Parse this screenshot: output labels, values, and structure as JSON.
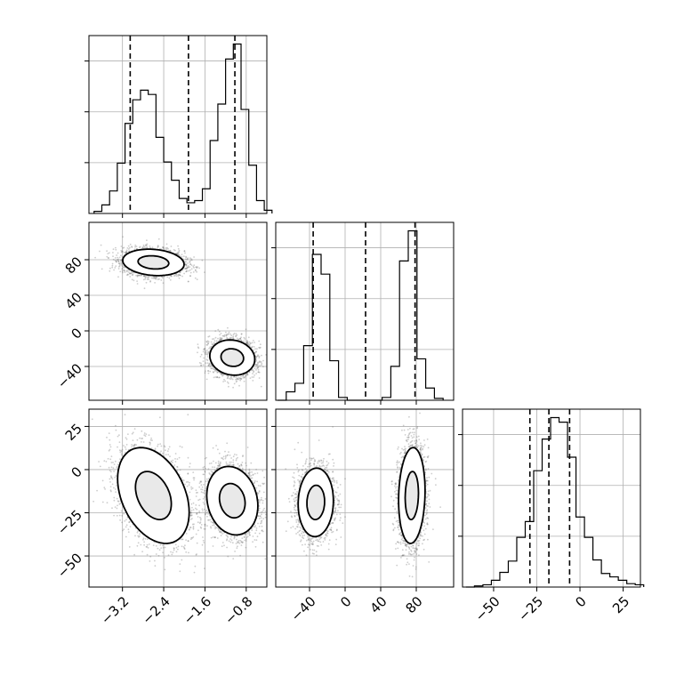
{
  "chart_data": {
    "type": "corner",
    "colors": {
      "hist": "#000000",
      "points": "#6f6f6f",
      "contour": "#000000",
      "grid": "#b0b0b0"
    },
    "params": [
      {
        "ticks": [
          -3.2,
          -2.4,
          -1.6,
          -0.8
        ],
        "tick_labels": [
          "−3.2",
          "−2.4",
          "−1.6",
          "−0.8"
        ],
        "range": [
          -3.85,
          -0.4
        ]
      },
      {
        "ticks": [
          -40,
          0,
          40,
          80
        ],
        "tick_labels": [
          "−40",
          "0",
          "40",
          "80"
        ],
        "range": [
          -78,
          122
        ]
      },
      {
        "ticks": [
          -50,
          -25,
          0,
          25
        ],
        "tick_labels": [
          "−50",
          "−25",
          "0",
          "25"
        ],
        "range": [
          -68,
          35
        ]
      }
    ],
    "histograms": [
      {
        "bin_start": -3.75,
        "bin_width": 0.15,
        "counts": [
          2,
          8,
          21,
          47,
          84,
          106,
          115,
          111,
          71,
          48,
          31,
          14,
          10,
          12,
          23,
          68,
          102,
          144,
          158,
          97,
          45,
          12,
          3
        ],
        "quantiles": [
          -3.05,
          -1.92,
          -1.02
        ]
      },
      {
        "bin_start": -76,
        "bin_width": 9.8,
        "counts": [
          0,
          9,
          18,
          58,
          155,
          134,
          42,
          3,
          0,
          0,
          0,
          0,
          3,
          36,
          148,
          180,
          44,
          13,
          2
        ],
        "quantiles": [
          -35.9,
          23,
          78.6
        ]
      },
      {
        "bin_start": -66,
        "bin_width": 4.9,
        "counts": [
          0,
          1,
          2,
          6,
          13,
          23,
          44,
          58,
          103,
          131,
          150,
          146,
          115,
          62,
          44,
          24,
          12,
          9,
          6,
          3,
          2
        ],
        "quantiles": [
          -29,
          -18,
          -6
        ]
      }
    ],
    "scatter_panels": [
      {
        "x_param": 0,
        "y_param": 1,
        "clusters": [
          {
            "cx": -2.6,
            "cy": 77,
            "sx": 0.3,
            "sy": 7.5,
            "rho": -0.15
          },
          {
            "cx": -1.07,
            "cy": -30,
            "sx": 0.22,
            "sy": 10,
            "rho": -0.1
          }
        ],
        "levels": [
          0.39,
          0.86,
          1.39
        ]
      },
      {
        "x_param": 0,
        "y_param": 2,
        "clusters": [
          {
            "cx": -2.6,
            "cy": -15,
            "sx": 0.35,
            "sy": 14,
            "rho": -0.35
          },
          {
            "cx": -1.07,
            "cy": -18,
            "sx": 0.25,
            "sy": 10,
            "rho": -0.15
          }
        ],
        "levels": [
          0.39,
          0.86,
          1.39
        ]
      },
      {
        "x_param": 1,
        "y_param": 2,
        "clusters": [
          {
            "cx": -33,
            "cy": -19,
            "sx": 10,
            "sy": 10,
            "rho": 0.05
          },
          {
            "cx": 75,
            "cy": -15,
            "sx": 7.5,
            "sy": 14,
            "rho": 0.1
          }
        ],
        "levels": [
          0.39,
          0.86,
          1.39
        ]
      }
    ]
  }
}
